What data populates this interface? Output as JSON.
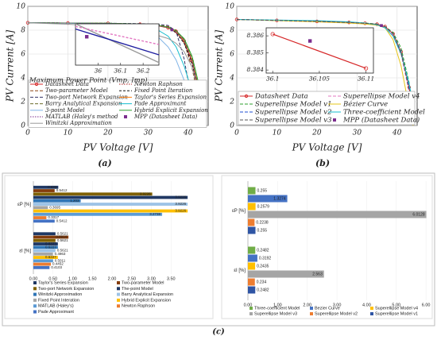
{
  "panel_labels": [
    "(a)",
    "(b)",
    "(c)"
  ],
  "chart_data": [
    {
      "type": "line",
      "xlabel": "PV Voltage [V]",
      "ylabel": "PV Current [A]",
      "xlim": [
        0,
        45
      ],
      "ylim": [
        0,
        10
      ],
      "xticks": [
        0,
        10,
        20,
        30,
        40
      ],
      "yticks": [
        0,
        2,
        4,
        6,
        8,
        10
      ],
      "grid": true,
      "x": [
        0,
        10,
        20,
        28,
        32,
        35,
        37,
        39,
        41,
        43,
        44
      ],
      "series": [
        {
          "name": "Datasheet Data",
          "color": "#d62728",
          "marker": "circle",
          "values": [
            8.62,
            8.6,
            8.57,
            8.5,
            8.4,
            8.2,
            7.9,
            7.1,
            5.4,
            2.4,
            0.5
          ]
        },
        {
          "name": "Newton Raphson",
          "color": "#b22222",
          "dash": "1.5 1.5",
          "values": [
            8.62,
            8.6,
            8.57,
            8.5,
            8.4,
            8.2,
            7.8,
            7.0,
            5.3,
            2.3,
            0.4
          ]
        },
        {
          "name": "Two-parameter Model",
          "color": "#8b4513",
          "dash": "4 2",
          "values": [
            8.62,
            8.6,
            8.58,
            8.52,
            8.45,
            8.3,
            8.0,
            7.0,
            4.8,
            1.6,
            0
          ]
        },
        {
          "name": "Fixed Point Iteration",
          "color": "#111111",
          "dash": "3 2",
          "values": [
            8.62,
            8.6,
            8.57,
            8.5,
            8.4,
            8.2,
            7.8,
            6.9,
            5.2,
            2.2,
            0.3
          ]
        },
        {
          "name": "Two-port Network Expansion",
          "color": "#333366",
          "dash": "4 2",
          "values": [
            8.62,
            8.6,
            8.58,
            8.55,
            8.5,
            8.4,
            7.9,
            5.6,
            1.8,
            0,
            null
          ]
        },
        {
          "name": "Taylor's Series Expansion",
          "color": "#ff7f0e",
          "values": [
            8.62,
            8.6,
            8.57,
            8.5,
            8.4,
            8.2,
            7.9,
            7.1,
            5.5,
            2.5,
            0.6
          ]
        },
        {
          "name": "Barry Analytical Expansion",
          "color": "#6b6b2a",
          "dash": "4 2",
          "values": [
            8.62,
            8.6,
            8.57,
            8.5,
            8.4,
            8.25,
            7.95,
            7.2,
            5.6,
            2.6,
            0.8
          ]
        },
        {
          "name": "Pade Approximant",
          "color": "#17becf",
          "values": [
            8.62,
            8.6,
            8.55,
            8.4,
            8.1,
            7.5,
            6.6,
            5.0,
            2.8,
            0.5,
            0
          ]
        },
        {
          "name": "3-point Model",
          "color": "#7fb3e6",
          "values": [
            8.62,
            8.58,
            8.5,
            8.2,
            7.6,
            6.6,
            5.5,
            3.8,
            1.8,
            0,
            null
          ]
        },
        {
          "name": "Hybrid Explicit Expansion",
          "color": "#2ca02c",
          "values": [
            8.62,
            8.6,
            8.58,
            8.52,
            8.44,
            8.25,
            7.95,
            7.3,
            5.8,
            3.0,
            1.0
          ]
        },
        {
          "name": "MATLAB (Haley's method",
          "color": "#7b2d8e",
          "dash": "1.5 1.5",
          "values": [
            8.62,
            8.6,
            8.57,
            8.5,
            8.4,
            8.2,
            7.9,
            7.1,
            5.4,
            2.4,
            0.5
          ]
        },
        {
          "name": "MPP (Datasheet Data)",
          "color": "#7b2d8e",
          "marker": "square",
          "line": false,
          "x": [
            35.95
          ],
          "values": [
            8.03
          ]
        },
        {
          "name": "Winitzki Approximation",
          "color": "#999999",
          "values": [
            8.62,
            8.5,
            8.3,
            7.9,
            7.6,
            7.3,
            6.9,
            6.2,
            4.9,
            2.2,
            0.4
          ]
        }
      ],
      "inset": {
        "title": "Maximum Power Point (Vmp, Imp)",
        "xlim": [
          35.9,
          36.27
        ],
        "ylim": [
          7.92,
          8.08
        ],
        "xticks": [
          36,
          36.1,
          36.2
        ],
        "series": [
          {
            "color": "#999999",
            "x": [
              35.9,
              36.27
            ],
            "values": [
              8.08,
              7.93
            ]
          },
          {
            "color": "#1f1fa0",
            "x": [
              35.9,
              36.27
            ],
            "values": [
              8.06,
              7.96
            ]
          },
          {
            "color": "#e377c2",
            "dash": "3 2",
            "x": [
              35.9,
              36.27
            ],
            "values": [
              8.07,
              8.0
            ]
          },
          {
            "color": "#7b2d8e",
            "marker": "square",
            "line": false,
            "x": [
              35.95
            ],
            "values": [
              8.03
            ]
          }
        ]
      }
    },
    {
      "type": "line",
      "xlabel": "PV Voltage [V]",
      "ylabel": "PV Current [A]",
      "xlim": [
        0,
        45
      ],
      "ylim": [
        0,
        10
      ],
      "xticks": [
        0,
        10,
        20,
        30,
        40
      ],
      "yticks": [
        0,
        2,
        4,
        6,
        8,
        10
      ],
      "grid": true,
      "x": [
        0,
        10,
        20,
        28,
        32,
        35,
        37,
        39,
        41,
        43,
        44
      ],
      "series": [
        {
          "name": "Datasheet Data",
          "color": "#d62728",
          "marker": "circle",
          "values": [
            8.9,
            8.82,
            8.74,
            8.65,
            8.58,
            8.5,
            8.3,
            7.7,
            6.2,
            3.2,
            1.0
          ]
        },
        {
          "name": "Superellipse Model v4",
          "color": "#e377c2",
          "dash": "4 2",
          "values": [
            8.9,
            8.82,
            8.74,
            8.65,
            8.58,
            8.5,
            8.3,
            7.6,
            6.0,
            2.8,
            0.6
          ]
        },
        {
          "name": "Superellipse Model v1",
          "color": "#2ca02c",
          "dash": "4 2",
          "values": [
            8.9,
            8.83,
            8.75,
            8.67,
            8.6,
            8.52,
            8.32,
            7.8,
            6.5,
            3.6,
            1.4
          ]
        },
        {
          "name": "Bézier Curve",
          "color": "#e6c619",
          "values": [
            8.9,
            8.8,
            8.7,
            8.6,
            8.52,
            8.42,
            8.2,
            7.2,
            5.0,
            1.5,
            0
          ]
        },
        {
          "name": "Superellipse Model v2",
          "color": "#1f4fd0",
          "dash": "4 2",
          "values": [
            8.9,
            8.82,
            8.74,
            8.65,
            8.58,
            8.5,
            8.3,
            7.7,
            6.2,
            3.2,
            1.0
          ]
        },
        {
          "name": "Three-coefficient Model",
          "color": "#17becf",
          "values": [
            8.9,
            8.85,
            8.8,
            8.7,
            8.6,
            8.45,
            8.2,
            7.5,
            6.0,
            3.5,
            1.8
          ]
        },
        {
          "name": "Superellipse Model v3",
          "color": "#555555",
          "dash": "4 2",
          "values": [
            8.9,
            8.82,
            8.74,
            8.65,
            8.58,
            8.5,
            8.3,
            7.7,
            6.1,
            3.0,
            0.8
          ]
        },
        {
          "name": "MPP (Datasheet Data)",
          "color": "#7b2d8e",
          "marker": "square",
          "line": false,
          "x": [
            36.1
          ],
          "values": [
            8.386
          ]
        }
      ],
      "inset": {
        "xlim": [
          36.0993,
          36.1108
        ],
        "ylim": [
          8.38382,
          8.38647
        ],
        "xticks": [
          36.1,
          36.105,
          36.11
        ],
        "yticks": [
          8.384,
          8.385,
          8.386
        ],
        "series": [
          {
            "color": "#d62728",
            "marker": "circle",
            "x": [
              36.1,
              36.11
            ],
            "values": [
              8.3861,
              8.3841
            ]
          },
          {
            "color": "#7b2d8e",
            "marker": "square",
            "line": false,
            "x": [
              36.104
            ],
            "values": [
              8.3857
            ]
          }
        ]
      }
    },
    {
      "type": "bar",
      "orientation": "horizontal",
      "categories": [
        "εP [%]",
        "εI [%]"
      ],
      "xlim": [
        0,
        4.0
      ],
      "xticks": [
        {
          "value": 0,
          "label": "0.00"
        },
        {
          "value": 0.5,
          "label": "0.50"
        },
        {
          "value": 1,
          "label": "1.00"
        },
        {
          "value": 1.5,
          "label": "1.50"
        },
        {
          "value": 2,
          "label": "2.00"
        },
        {
          "value": 2.5,
          "label": "2.50"
        },
        {
          "value": 3,
          "label": "3.00"
        },
        {
          "value": 3.5,
          "label": "3.50"
        }
      ],
      "grid": true,
      "series": [
        {
          "name": "Taylor's Series Expansion",
          "color": "#1f3864",
          "values": [
            0.633,
            0.5621
          ]
        },
        {
          "name": "Two-parameter Model",
          "color": "#843c0c",
          "values": [
            0.5412,
            0.8914
          ]
        },
        {
          "name": "Two-port Network Expansion",
          "color": "#7f6000",
          "values": [
            3.0226,
            0.5621
          ]
        },
        {
          "name": "The-point Model",
          "color": "#203864",
          "values": [
            3.9226,
            0.6227
          ]
        },
        {
          "name": "Winitzki Approximation",
          "color": "#2e75b6",
          "values": [
            1.203,
            0.6227
          ]
        },
        {
          "name": "Barry Analytical Expansion",
          "color": "#9dc3e6",
          "values": [
            3.9226,
            0.5621
          ]
        },
        {
          "name": "Fixed Point Interation",
          "color": "#a5a5a5",
          "values": [
            0.3695,
            0.4963
          ]
        },
        {
          "name": "Hybrid Explicit Expansion",
          "color": "#ffc000",
          "values": [
            3.9226,
            0.6227
          ]
        },
        {
          "name": "MATLAB (Haley's)",
          "color": "#5b9bd5",
          "values": [
            3.2738,
            0.5011
          ]
        },
        {
          "name": "Newton Raphson",
          "color": "#ed7d31",
          "values": [
            0.3317,
            0.4452
          ]
        },
        {
          "name": "Pade Approximant",
          "color": "#4472c4",
          "values": [
            0.5412,
            0.4103
          ]
        }
      ]
    },
    {
      "type": "bar",
      "orientation": "horizontal",
      "categories": [
        "εP [%]",
        "εI [%]"
      ],
      "xlim": [
        0,
        6.05
      ],
      "xticks": [
        {
          "value": 0,
          "label": "0.00"
        },
        {
          "value": 1,
          "label": "1.00"
        },
        {
          "value": 2,
          "label": "2.00"
        },
        {
          "value": 3,
          "label": "3.00"
        },
        {
          "value": 4,
          "label": "4.00"
        },
        {
          "value": 5,
          "label": "5.00"
        },
        {
          "value": 6,
          "label": "6.00"
        }
      ],
      "grid": true,
      "series": [
        {
          "name": "Three-coefficient Model",
          "color": "#70ad47",
          "values": [
            0.255,
            0.2482
          ]
        },
        {
          "name": "Bezier Curve",
          "color": "#4472c4",
          "values": [
            1.3274,
            0.3192
          ]
        },
        {
          "name": "Superellipse Model v4",
          "color": "#ffc000",
          "values": [
            0.2579,
            0.2435
          ]
        },
        {
          "name": "Superellipse Model v3",
          "color": "#a5a5a5",
          "values": [
            6.0128,
            2.563
          ]
        },
        {
          "name": "Superellipse Model v2",
          "color": "#ed7d31",
          "values": [
            0.2238,
            0.234
          ]
        },
        {
          "name": "Superellipse Model v1",
          "color": "#2f55a4",
          "values": [
            0.255,
            0.2482
          ]
        }
      ]
    }
  ]
}
